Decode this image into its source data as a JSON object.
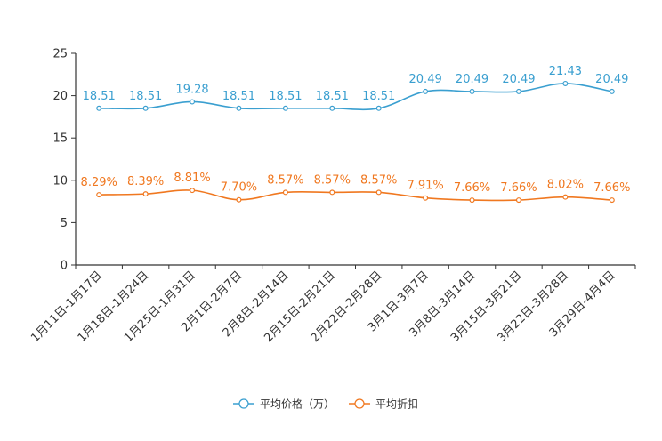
{
  "chart_data": {
    "type": "line",
    "title": "",
    "xlabel": "",
    "ylabel": "",
    "ylim": [
      0,
      25
    ],
    "yticks": [
      0,
      5,
      10,
      15,
      20,
      25
    ],
    "grid": false,
    "legend_position": "bottom-center",
    "smooth": true,
    "categories": [
      "1月11日-1月17日",
      "1月18日-1月24日",
      "1月25日-1月31日",
      "2月1日-2月7日",
      "2月8日-2月14日",
      "2月15日-2月21日",
      "2月22日-2月28日",
      "3月1日-3月7日",
      "3月8日-3月14日",
      "3月15日-3月21日",
      "3月22日-3月28日",
      "3月29日-4月4日"
    ],
    "series": [
      {
        "name": "平均价格（万）",
        "color": "#3a9fd0",
        "values": [
          18.51,
          18.51,
          19.28,
          18.51,
          18.51,
          18.51,
          18.51,
          20.49,
          20.49,
          20.49,
          21.43,
          20.49
        ],
        "labels": [
          "18.51",
          "18.51",
          "19.28",
          "18.51",
          "18.51",
          "18.51",
          "18.51",
          "20.49",
          "20.49",
          "20.49",
          "21.43",
          "20.49"
        ]
      },
      {
        "name": "平均折扣",
        "color": "#f07820",
        "values": [
          8.29,
          8.39,
          8.81,
          7.7,
          8.57,
          8.57,
          8.57,
          7.91,
          7.66,
          7.66,
          8.02,
          7.66
        ],
        "labels": [
          "8.29%",
          "8.39%",
          "8.81%",
          "7.70%",
          "8.57%",
          "8.57%",
          "8.57%",
          "7.91%",
          "7.66%",
          "7.66%",
          "8.02%",
          "7.66%"
        ]
      }
    ]
  }
}
